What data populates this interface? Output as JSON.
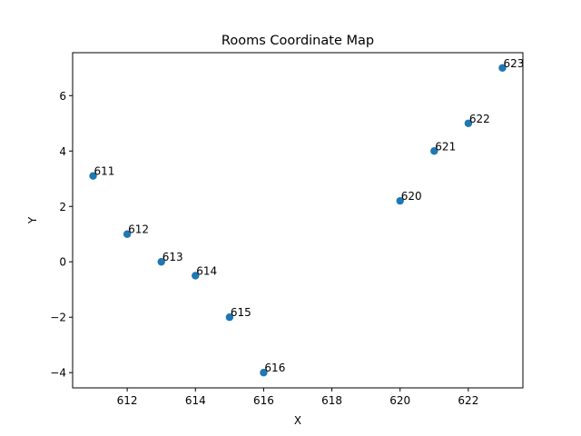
{
  "chart_data": {
    "type": "scatter",
    "title": "Rooms Coordinate Map",
    "xlabel": "X",
    "ylabel": "Y",
    "xlim": [
      610.4,
      623.6
    ],
    "ylim": [
      -4.55,
      7.55
    ],
    "xticks": [
      612,
      614,
      616,
      618,
      620,
      622
    ],
    "yticks": [
      -4,
      -2,
      0,
      2,
      4,
      6
    ],
    "grid": false,
    "marker_color": "#1f77b4",
    "points": [
      {
        "x": 611,
        "y": 3.1,
        "label": "611"
      },
      {
        "x": 612,
        "y": 1.0,
        "label": "612"
      },
      {
        "x": 613,
        "y": 0.0,
        "label": "613"
      },
      {
        "x": 614,
        "y": -0.5,
        "label": "614"
      },
      {
        "x": 615,
        "y": -2.0,
        "label": "615"
      },
      {
        "x": 616,
        "y": -4.0,
        "label": "616"
      },
      {
        "x": 620,
        "y": 2.2,
        "label": "620"
      },
      {
        "x": 621,
        "y": 4.0,
        "label": "621"
      },
      {
        "x": 622,
        "y": 5.0,
        "label": "622"
      },
      {
        "x": 623,
        "y": 7.0,
        "label": "623"
      }
    ]
  }
}
